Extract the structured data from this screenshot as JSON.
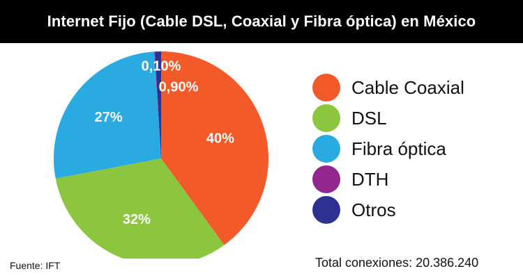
{
  "header": {
    "title": "Internet Fijo (Cable DSL, Coaxial y Fibra óptica) en México"
  },
  "chart_data": {
    "type": "pie",
    "title": "Internet Fijo (Cable DSL, Coaxial y Fibra óptica) en México",
    "slices": [
      {
        "name": "Cable Coaxial",
        "value": 40,
        "label": "40%",
        "color": "#f25a2a"
      },
      {
        "name": "DSL",
        "value": 32,
        "label": "32%",
        "color": "#8cc63f"
      },
      {
        "name": "Fibra óptica",
        "value": 27,
        "label": "27%",
        "color": "#29abe2"
      },
      {
        "name": "DTH",
        "value": 0.1,
        "label": "0,10%",
        "color": "#93278f"
      },
      {
        "name": "Otros",
        "value": 0.9,
        "label": "0,90%",
        "color": "#2e3192"
      }
    ],
    "legend_position": "right"
  },
  "legend": {
    "items": [
      {
        "label": "Cable Coaxial",
        "color": "#f25a2a"
      },
      {
        "label": "DSL",
        "color": "#8cc63f"
      },
      {
        "label": "Fibra óptica",
        "color": "#29abe2"
      },
      {
        "label": "DTH",
        "color": "#93278f"
      },
      {
        "label": "Otros",
        "color": "#2e3192"
      }
    ]
  },
  "footer": {
    "source": "Fuente: IFT",
    "total": "Total conexiones: 20.386.240"
  }
}
